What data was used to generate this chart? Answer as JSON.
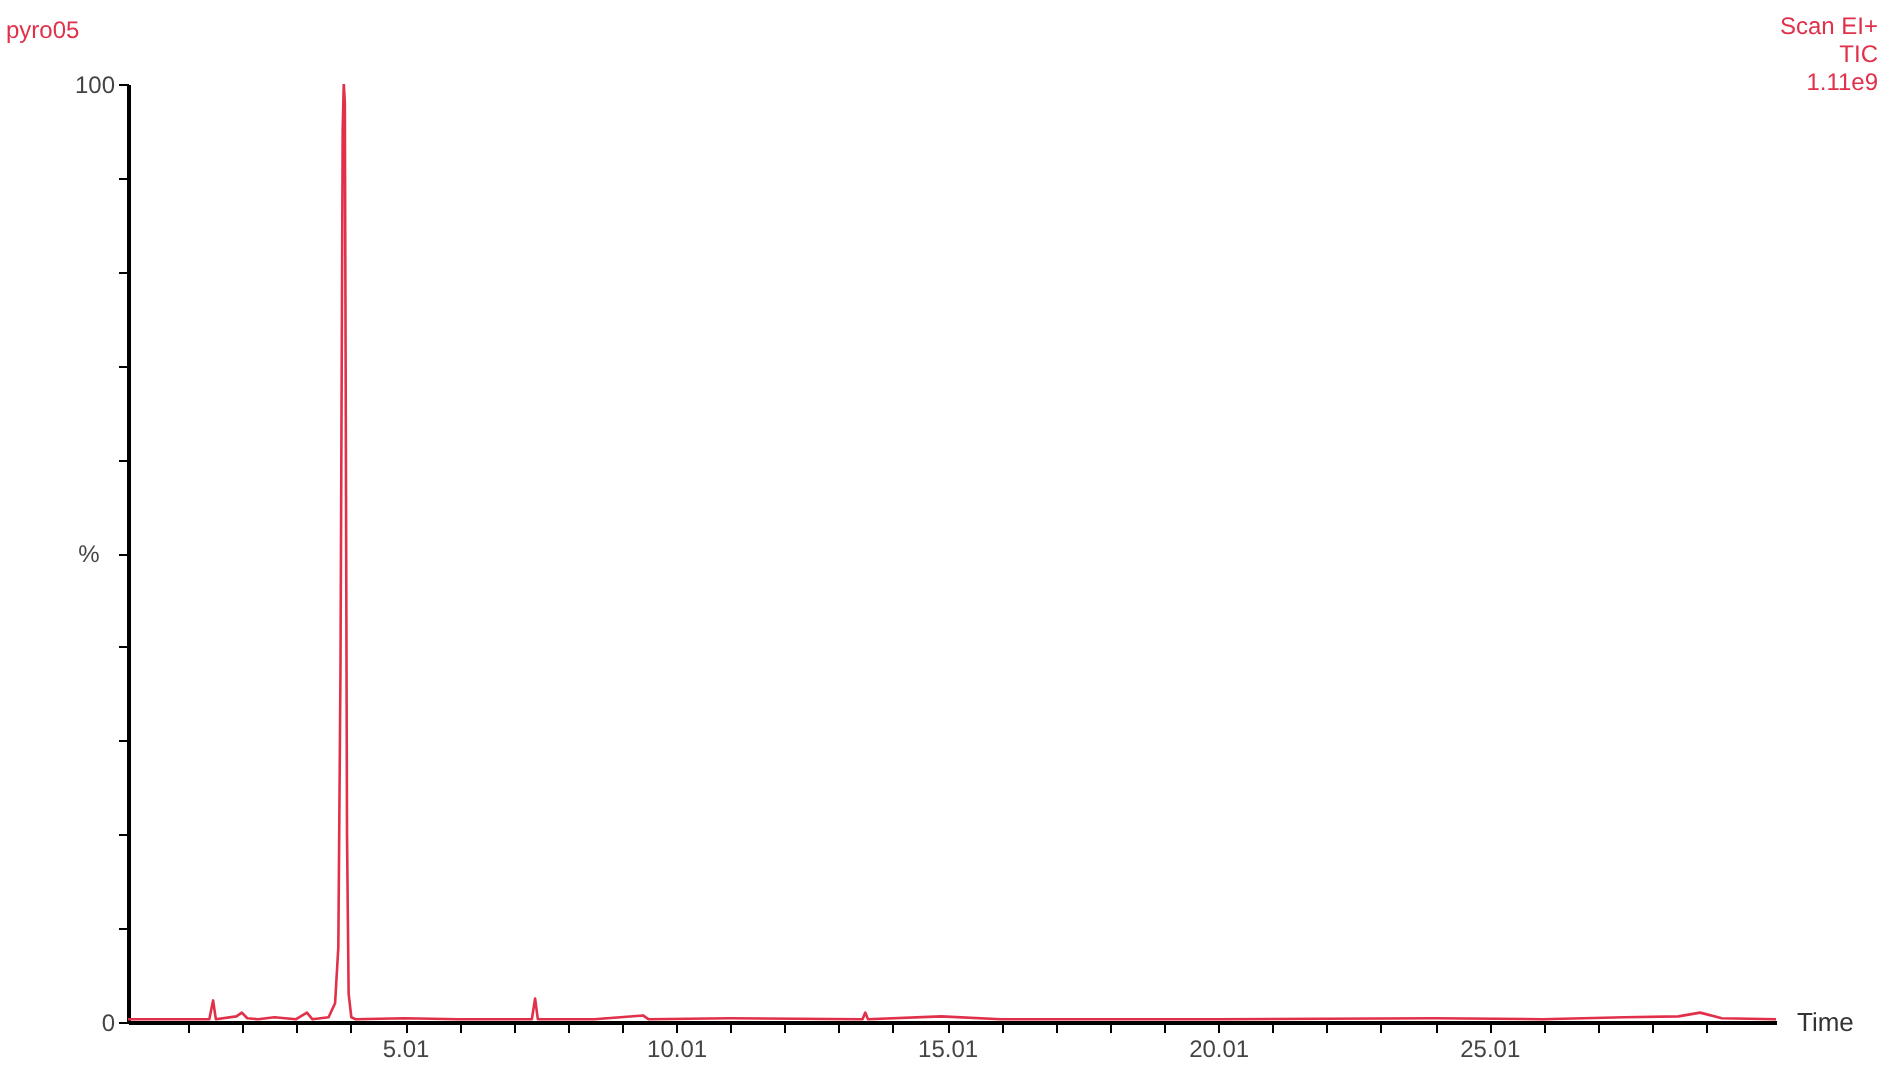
{
  "chart_data": {
    "type": "line",
    "title": "pyro05",
    "xlabel": "Time",
    "ylabel": "%",
    "annotations": [
      "Scan EI+",
      "TIC",
      "1.11e9"
    ],
    "xlim": [
      -0.1,
      30.3
    ],
    "ylim": [
      0,
      100
    ],
    "xticks": [
      {
        "value": 1.01,
        "label": null
      },
      {
        "value": 2.01,
        "label": null
      },
      {
        "value": 3.01,
        "label": null
      },
      {
        "value": 4.01,
        "label": null
      },
      5.01,
      {
        "value": 6.01,
        "label": null
      },
      {
        "value": 7.01,
        "label": null
      },
      {
        "value": 8.01,
        "label": null
      },
      {
        "value": 9.01,
        "label": null
      },
      10.01,
      {
        "value": 11.01,
        "label": null
      },
      {
        "value": 12.01,
        "label": null
      },
      {
        "value": 13.01,
        "label": null
      },
      {
        "value": 14.01,
        "label": null
      },
      15.01,
      {
        "value": 16.01,
        "label": null
      },
      {
        "value": 17.01,
        "label": null
      },
      {
        "value": 18.01,
        "label": null
      },
      {
        "value": 19.01,
        "label": null
      },
      20.01,
      {
        "value": 21.01,
        "label": null
      },
      {
        "value": 22.01,
        "label": null
      },
      {
        "value": 23.01,
        "label": null
      },
      {
        "value": 24.01,
        "label": null
      },
      25.01,
      {
        "value": 26.01,
        "label": null
      },
      {
        "value": 27.01,
        "label": null
      },
      {
        "value": 28.01,
        "label": null
      },
      {
        "value": 29.01,
        "label": null
      }
    ],
    "yticks": [
      0,
      {
        "value": 10,
        "label": null
      },
      {
        "value": 20,
        "label": null
      },
      {
        "value": 30,
        "label": null
      },
      {
        "value": 40,
        "label": null
      },
      {
        "value": 50,
        "label": null
      },
      {
        "value": 60,
        "label": null
      },
      {
        "value": 70,
        "label": null
      },
      {
        "value": 80,
        "label": null
      },
      {
        "value": 90,
        "label": null
      },
      100
    ],
    "grid": false,
    "marker": "none",
    "line_style": "solid",
    "series": [
      {
        "color": "#e0304a",
        "x": [
          -0.1,
          1.4,
          1.47,
          1.52,
          1.9,
          2.0,
          2.1,
          2.3,
          2.6,
          3.0,
          3.2,
          3.3,
          3.6,
          3.72,
          3.78,
          3.82,
          3.86,
          3.88,
          3.9,
          3.92,
          3.94,
          3.97,
          4.02,
          4.1,
          5.0,
          6.0,
          7.35,
          7.41,
          7.46,
          8.5,
          9.4,
          9.5,
          11.0,
          13.45,
          13.5,
          13.55,
          14.9,
          16,
          20,
          24,
          26,
          27.5,
          28.5,
          28.9,
          29.3,
          30.3
        ],
        "values": [
          0.3,
          0.3,
          2.3,
          0.3,
          0.6,
          1.0,
          0.4,
          0.3,
          0.5,
          0.3,
          1.0,
          0.3,
          0.5,
          2,
          8,
          38,
          95,
          100,
          98,
          60,
          20,
          3,
          0.5,
          0.3,
          0.4,
          0.3,
          0.3,
          2.5,
          0.3,
          0.3,
          0.7,
          0.3,
          0.4,
          0.3,
          1.0,
          0.3,
          0.6,
          0.3,
          0.3,
          0.4,
          0.3,
          0.5,
          0.6,
          1.0,
          0.4,
          0.3
        ]
      }
    ]
  }
}
